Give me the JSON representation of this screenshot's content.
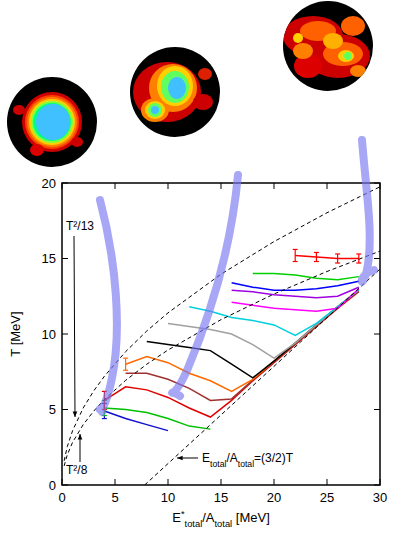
{
  "chart_data": {
    "type": "line",
    "xlabel": [
      "E",
      "*",
      "total",
      "/A",
      "total",
      " [MeV]"
    ],
    "ylabel": "T [MeV]",
    "xlim": [
      0,
      30
    ],
    "ylim": [
      0,
      20
    ],
    "xticks": [
      0,
      5,
      10,
      15,
      20,
      25,
      30
    ],
    "yticks": [
      0,
      5,
      10,
      15,
      20
    ],
    "annotations": [
      {
        "text": "T²/13"
      },
      {
        "text": "T²/8"
      },
      {
        "text": [
          "E",
          "total",
          "/A",
          "total",
          "=(3/2)T"
        ]
      }
    ],
    "series": [
      {
        "color": "#1010d0",
        "x": [
          4,
          6,
          8,
          10
        ],
        "values": [
          4.9,
          4.4,
          4.0,
          3.6
        ],
        "errors": [
          0.5,
          null,
          null,
          null
        ]
      },
      {
        "color": "#00c000",
        "x": [
          4,
          6,
          8,
          10,
          12,
          14
        ],
        "values": [
          5.1,
          5.0,
          4.8,
          4.4,
          3.9,
          3.7
        ],
        "errors": [
          0.5,
          null,
          null,
          null,
          null,
          null
        ]
      },
      {
        "color": "#e00000",
        "x": [
          4,
          6,
          8,
          10,
          12,
          14,
          16,
          18,
          20,
          22,
          24,
          26,
          28
        ],
        "values": [
          5.6,
          6.5,
          6.3,
          5.8,
          5.1,
          4.5,
          5.6,
          6.9,
          8.1,
          9.3,
          10.5,
          11.7,
          12.8
        ],
        "errors": [
          0.6,
          null,
          null,
          null,
          null,
          null,
          null,
          null,
          null,
          null,
          null,
          null,
          null
        ]
      },
      {
        "color": "#a03030",
        "x": [
          6,
          8,
          10,
          12,
          14,
          16,
          18,
          20,
          22,
          24,
          26,
          28
        ],
        "values": [
          7.4,
          7.4,
          7.0,
          6.4,
          5.6,
          5.7,
          6.95,
          8.15,
          9.35,
          10.55,
          11.75,
          12.85
        ]
      },
      {
        "color": "#ff6a00",
        "x": [
          6,
          8,
          10,
          12,
          14,
          16,
          18,
          20,
          22,
          24,
          26,
          28
        ],
        "values": [
          8.0,
          8.5,
          8.1,
          7.4,
          6.9,
          6.2,
          7.0,
          8.2,
          9.4,
          10.6,
          11.8,
          12.9
        ],
        "errors": [
          0.4,
          null,
          null,
          null,
          null,
          null,
          null,
          null,
          null,
          null,
          null,
          null
        ]
      },
      {
        "color": "#000000",
        "x": [
          8,
          10,
          12,
          14,
          16,
          18,
          20,
          22,
          24,
          26,
          28
        ],
        "values": [
          9.5,
          9.3,
          9.1,
          8.9,
          8.0,
          7.1,
          8.2,
          9.4,
          10.6,
          11.8,
          12.9
        ]
      },
      {
        "color": "#a0a0a0",
        "x": [
          10,
          12,
          14,
          16,
          18,
          20,
          22,
          24,
          26,
          28
        ],
        "values": [
          10.7,
          10.5,
          10.3,
          10.0,
          9.3,
          8.4,
          9.4,
          10.6,
          11.8,
          12.9
        ]
      },
      {
        "color": "#00d0e0",
        "x": [
          12,
          14,
          16,
          18,
          20,
          22,
          24,
          26,
          28
        ],
        "values": [
          11.8,
          11.5,
          11.1,
          10.9,
          10.6,
          9.9,
          10.7,
          11.8,
          12.95
        ]
      },
      {
        "color": "#ff00ff",
        "x": [
          16,
          18,
          20,
          22,
          24,
          26,
          28
        ],
        "values": [
          12.1,
          11.9,
          11.7,
          11.6,
          11.5,
          11.7,
          13.0
        ]
      },
      {
        "color": "#a000e0",
        "x": [
          16,
          18,
          20,
          22,
          24,
          26,
          28
        ],
        "values": [
          12.9,
          12.8,
          12.6,
          12.5,
          12.4,
          12.5,
          13.1
        ]
      },
      {
        "color": "#0000ff",
        "x": [
          16,
          18,
          20,
          22,
          24,
          26,
          28
        ],
        "values": [
          13.4,
          13.1,
          12.9,
          12.9,
          13.0,
          13.2,
          13.5
        ]
      },
      {
        "color": "#00d000",
        "x": [
          18,
          20,
          22,
          24,
          26,
          28
        ],
        "values": [
          14.0,
          14.0,
          13.9,
          13.7,
          13.6,
          13.8
        ]
      },
      {
        "color": "#ff0000",
        "x": [
          22,
          24,
          26,
          28
        ],
        "values": [
          15.2,
          15.1,
          15.0,
          15.0
        ],
        "errors": [
          0.4,
          0.3,
          0.3,
          0.3
        ]
      },
      {
        "color": "#000000",
        "line_style": "dashed",
        "x": [
          0.2,
          0.5,
          1,
          2,
          3,
          4,
          6,
          8,
          10,
          15,
          20,
          25,
          30
        ],
        "values": [
          1.6,
          2.55,
          3.6,
          5.1,
          6.24,
          7.2,
          8.83,
          10.2,
          11.4,
          13.96,
          16.12,
          18.03,
          19.75
        ]
      },
      {
        "color": "#000000",
        "line_style": "dashed",
        "x": [
          0.2,
          0.5,
          1,
          2,
          3,
          4,
          6,
          8,
          10,
          15,
          20,
          25,
          30
        ],
        "values": [
          1.26,
          2.0,
          2.83,
          4.0,
          4.9,
          5.66,
          6.93,
          8.0,
          8.94,
          10.95,
          12.65,
          14.14,
          15.49
        ]
      },
      {
        "color": "#000000",
        "line_style": "dashed",
        "x": [
          7.8,
          30
        ],
        "values": [
          0,
          14.3
        ]
      }
    ]
  }
}
